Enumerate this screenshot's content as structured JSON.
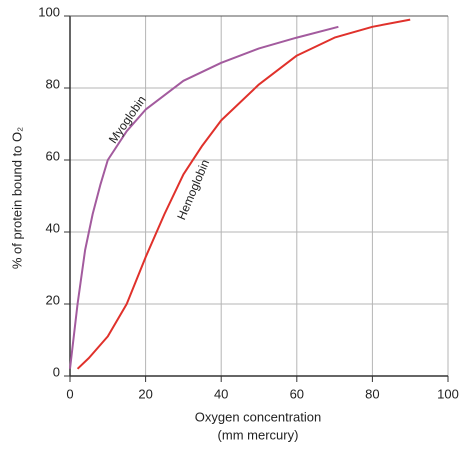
{
  "chart_data": {
    "type": "line",
    "xlabel": "Oxygen concentration",
    "xlabel_unit": "(mm mercury)",
    "ylabel": "% of protein bound to O₂",
    "xlim": [
      0,
      100
    ],
    "ylim": [
      0,
      100
    ],
    "xticks": [
      0,
      20,
      40,
      60,
      80,
      100
    ],
    "yticks": [
      0,
      20,
      40,
      60,
      80,
      100
    ],
    "grid": true,
    "series": [
      {
        "name": "Myoglobin",
        "color": "#a35b9e",
        "x": [
          0,
          2,
          4,
          6,
          8,
          10,
          15,
          20,
          30,
          40,
          50,
          60,
          71
        ],
        "values": [
          2,
          20,
          35,
          45,
          53,
          60,
          68,
          74,
          82,
          87,
          91,
          94,
          97
        ]
      },
      {
        "name": "Hemoglobin",
        "color": "#e0312b",
        "x": [
          2,
          5,
          10,
          15,
          20,
          25,
          30,
          35,
          40,
          50,
          60,
          70,
          80,
          90
        ],
        "values": [
          2,
          5,
          11,
          20,
          33,
          45,
          56,
          64,
          71,
          81,
          89,
          94,
          97,
          99
        ]
      }
    ]
  }
}
